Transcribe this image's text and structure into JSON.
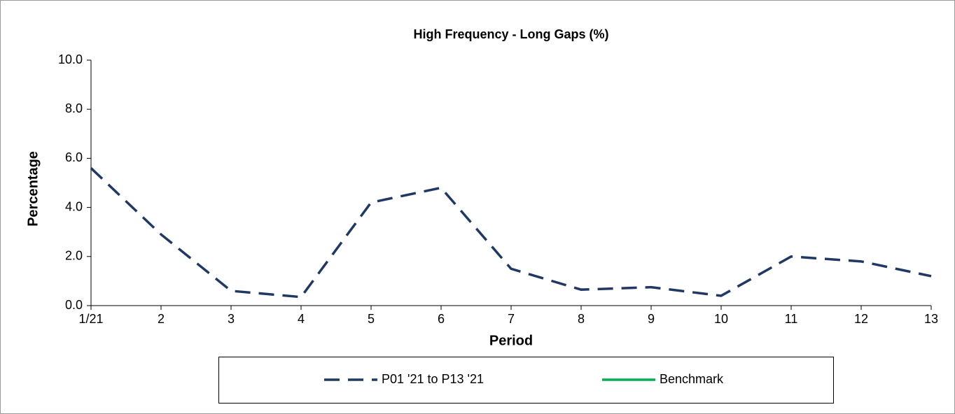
{
  "chart_data": {
    "type": "line",
    "title": "High Frequency - Long Gaps (%)",
    "x_label": "Period",
    "y_label": "Percentage",
    "categories": [
      "1/21",
      "2",
      "3",
      "4",
      "5",
      "6",
      "7",
      "8",
      "9",
      "10",
      "11",
      "12",
      "13"
    ],
    "series": [
      {
        "name": "P01 '21 to P13 '21",
        "color": "#1f3864",
        "dashed": true,
        "values": [
          5.6,
          2.9,
          0.6,
          0.35,
          4.2,
          4.8,
          1.5,
          0.65,
          0.75,
          0.4,
          2.0,
          1.8,
          1.2
        ]
      },
      {
        "name": "Benchmark",
        "color": "#00b050",
        "dashed": false,
        "values": [
          null,
          null,
          null,
          null,
          null,
          null,
          null,
          null,
          null,
          null,
          null,
          null,
          null
        ]
      }
    ],
    "ylim": [
      0,
      10
    ],
    "yticks": [
      {
        "value": 0,
        "label": "0.0"
      },
      {
        "value": 2,
        "label": "2.0"
      },
      {
        "value": 4,
        "label": "4.0"
      },
      {
        "value": 6,
        "label": "6.0"
      },
      {
        "value": 8,
        "label": "8.0"
      },
      {
        "value": 10,
        "label": "10.0"
      }
    ],
    "grid": false,
    "legend": "bottom"
  }
}
